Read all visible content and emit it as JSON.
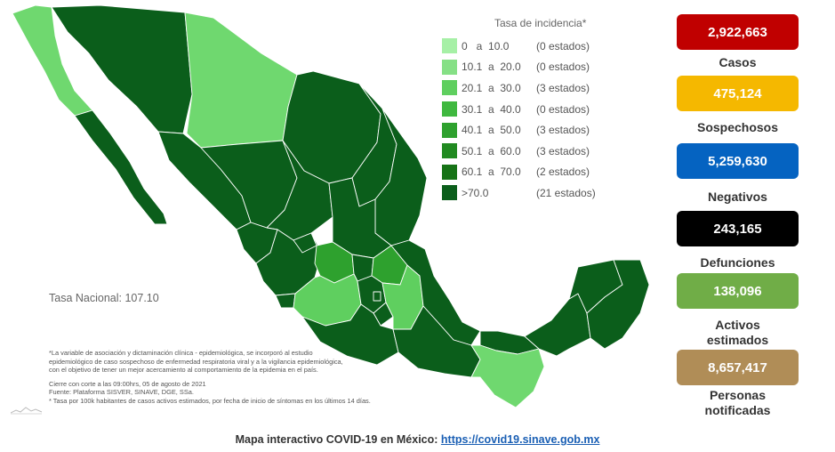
{
  "legend": {
    "title": "Tasa de incidencia*",
    "rows": [
      {
        "range": "0   a  10.0",
        "count": "(0 estados)",
        "color": "#a6f0a6"
      },
      {
        "range": "10.1  a  20.0",
        "count": "(0 estados)",
        "color": "#86e086"
      },
      {
        "range": "20.1  a  30.0",
        "count": "(3 estados)",
        "color": "#5fcf5f"
      },
      {
        "range": "30.1  a  40.0",
        "count": "(0 estados)",
        "color": "#3fb83f"
      },
      {
        "range": "40.1  a  50.0",
        "count": "(3 estados)",
        "color": "#2ea12e"
      },
      {
        "range": "50.1  a  60.0",
        "count": "(3 estados)",
        "color": "#218a21"
      },
      {
        "range": "60.1  a  70.0",
        "count": "(2 estados)",
        "color": "#167316"
      },
      {
        "range": ">70.0",
        "count": "(21 estados)",
        "color": "#0b5e1b"
      }
    ]
  },
  "tasa_nacional": "Tasa Nacional: 107.10",
  "notes": {
    "line1": "*La variable de asociación y dictaminación clínica - epidemiológica, se incorporó al estudio",
    "line2": "epidemiológico de caso sospechoso de enfermedad respiratoria viral y a la vigilancia epidemiológica,",
    "line3": "con el objetivo de tener un mejor acercamiento al comportamiento de la epidemia en el país.",
    "cierre": "Cierre con corte a las 09:00hrs, 05 de agosto de 2021",
    "fuente": "Fuente: Plataforma SISVER, SINAVE, DGE, SSa.",
    "tasa": "* Tasa por 100k habitantes de casos activos estimados, por fecha de inicio de síntomas en los últimos 14 días."
  },
  "stats": [
    {
      "value": "2,922,663",
      "label": "Casos",
      "color": "#c00000"
    },
    {
      "value": "475,124",
      "label": "Sospechosos",
      "color": "#f5b800"
    },
    {
      "value": "5,259,630",
      "label": "Negativos",
      "color": "#0563c1"
    },
    {
      "value": "243,165",
      "label": "Defunciones",
      "color": "#000000"
    },
    {
      "value": "138,096",
      "label": "Activos estimados",
      "color": "#70ad47"
    },
    {
      "value": "8,657,417",
      "label": "Personas notificadas",
      "color": "#b08d57"
    }
  ],
  "footer": {
    "text": "Mapa interactivo COVID-19 en México:",
    "link": "https://covid19.sinave.gob.mx"
  },
  "map_colors": {
    "dark": "#0b5e1b",
    "medium": "#2ea12e",
    "light": "#5fcf5f",
    "very_light": "#6fd86f",
    "border": "#ffffff"
  }
}
